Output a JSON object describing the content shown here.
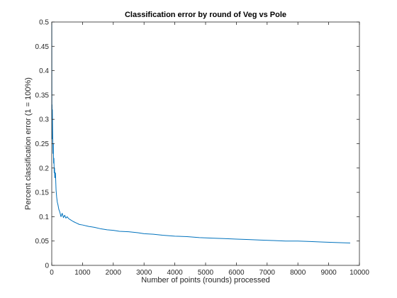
{
  "chart_data": {
    "type": "line",
    "title": "Classification error by round of Veg vs Pole",
    "xlabel": "Number of points (rounds) processed",
    "ylabel": "Percent classification error (1 = 100%)",
    "xlim": [
      0,
      10000
    ],
    "ylim": [
      0,
      0.5
    ],
    "xticks": [
      0,
      1000,
      2000,
      3000,
      4000,
      5000,
      6000,
      7000,
      8000,
      9000,
      10000
    ],
    "xtick_labels": [
      "0",
      "1000",
      "2000",
      "3000",
      "4000",
      "5000",
      "6000",
      "7000",
      "8000",
      "9000",
      "10000"
    ],
    "yticks": [
      0,
      0.05,
      0.1,
      0.15,
      0.2,
      0.25,
      0.3,
      0.35,
      0.4,
      0.45,
      0.5
    ],
    "ytick_labels": [
      "0",
      "0.05",
      "0.1",
      "0.15",
      "0.2",
      "0.25",
      "0.3",
      "0.35",
      "0.4",
      "0.45",
      "0.5"
    ],
    "grid": false,
    "box": true,
    "series": [
      {
        "color": "#0072bd",
        "x": [
          1,
          5,
          10,
          15,
          20,
          30,
          40,
          50,
          60,
          70,
          80,
          90,
          100,
          120,
          140,
          160,
          180,
          200,
          230,
          260,
          300,
          340,
          380,
          420,
          460,
          500,
          550,
          600,
          700,
          800,
          900,
          1000,
          1200,
          1400,
          1600,
          1800,
          2000,
          2200,
          2500,
          2800,
          3000,
          3300,
          3600,
          4000,
          4400,
          4800,
          5200,
          5600,
          6000,
          6400,
          6800,
          7200,
          7600,
          8000,
          8400,
          8800,
          9200,
          9700
        ],
        "y": [
          0.5,
          0.3,
          0.33,
          0.26,
          0.32,
          0.27,
          0.23,
          0.25,
          0.21,
          0.22,
          0.19,
          0.2,
          0.18,
          0.19,
          0.155,
          0.14,
          0.13,
          0.125,
          0.115,
          0.11,
          0.1,
          0.107,
          0.098,
          0.103,
          0.097,
          0.1,
          0.096,
          0.094,
          0.09,
          0.087,
          0.084,
          0.083,
          0.08,
          0.078,
          0.075,
          0.073,
          0.072,
          0.07,
          0.069,
          0.067,
          0.065,
          0.064,
          0.062,
          0.06,
          0.059,
          0.057,
          0.056,
          0.055,
          0.054,
          0.053,
          0.052,
          0.051,
          0.05,
          0.05,
          0.049,
          0.048,
          0.047,
          0.046
        ]
      }
    ]
  }
}
